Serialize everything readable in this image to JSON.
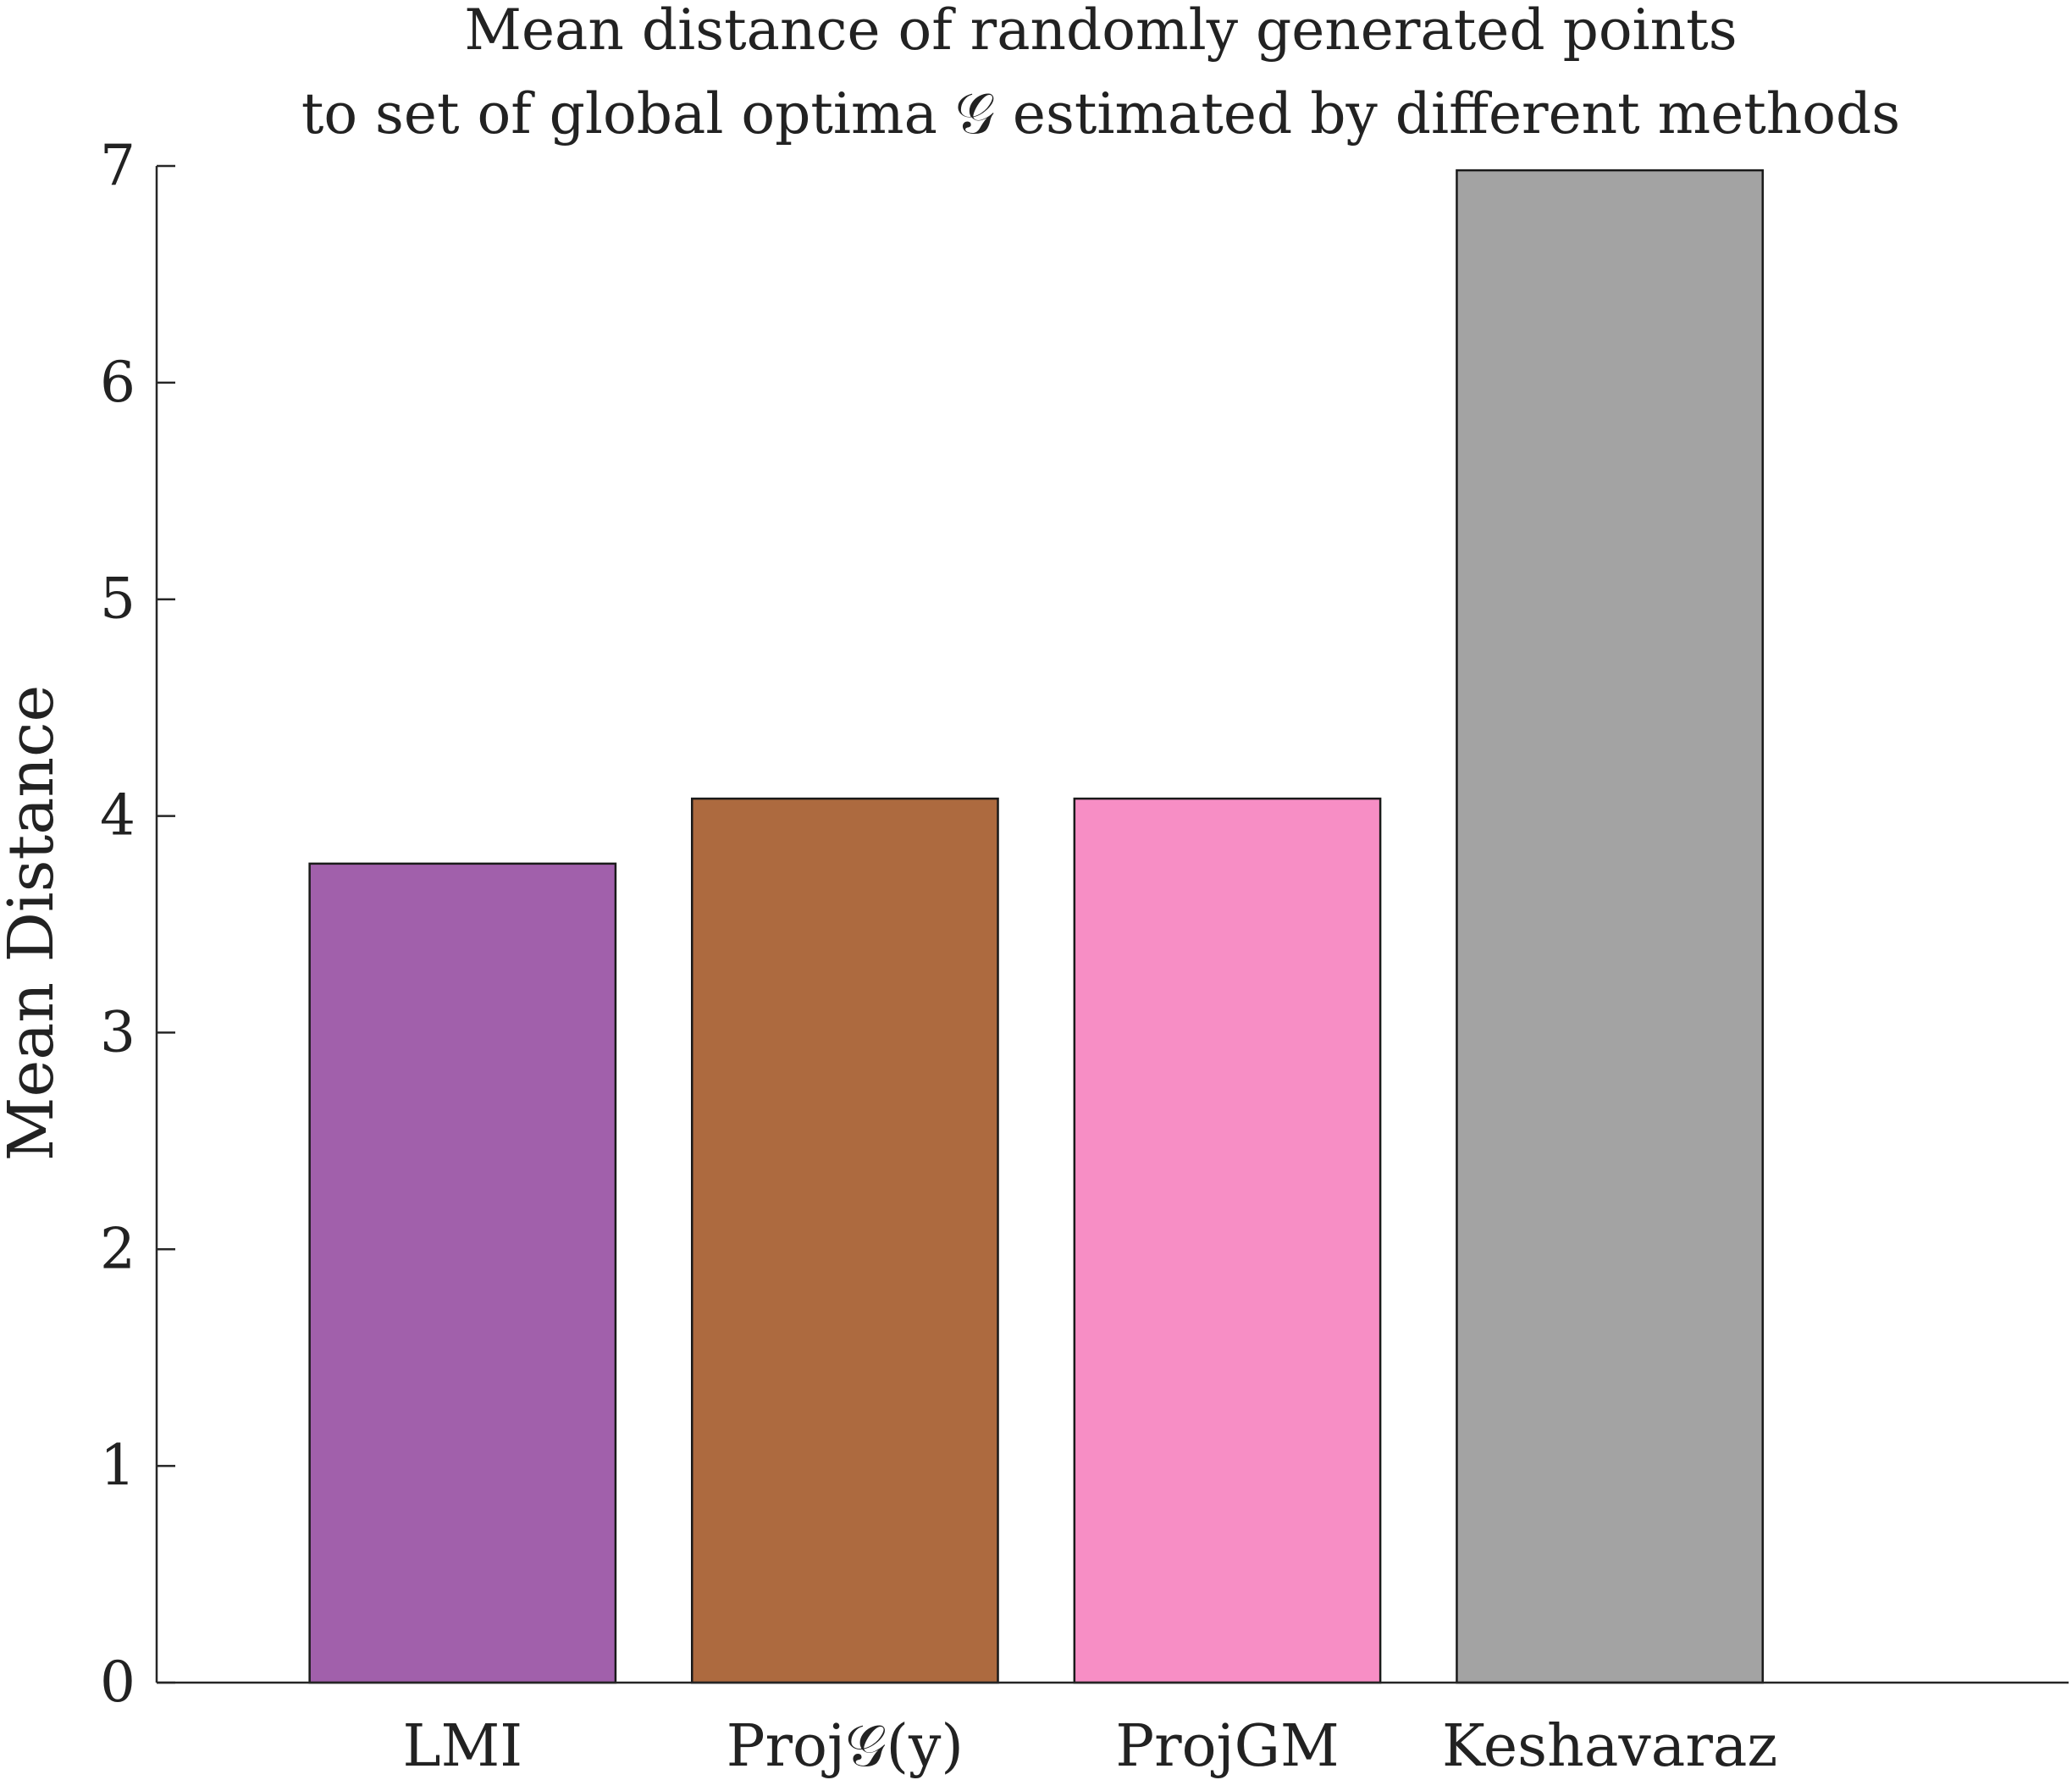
{
  "chart_data": {
    "type": "bar",
    "title_lines": [
      "Mean distance of randomly generated points",
      "to set of global optima 𝒢 estimated by different methods"
    ],
    "xlabel": "",
    "ylabel": "Mean Distance",
    "categories": [
      "LMI",
      "Proj𝒢(y)",
      "ProjGM",
      "Keshavaraz"
    ],
    "values": [
      3.78,
      4.08,
      4.08,
      6.98
    ],
    "colors": [
      "#a160ab",
      "#ad6a3f",
      "#f78ec5",
      "#a3a3a3"
    ],
    "ylim": [
      0,
      7
    ],
    "yticks": [
      0,
      1,
      2,
      3,
      4,
      5,
      6,
      7
    ],
    "ytick_labels": [
      "0",
      "1",
      "2",
      "3",
      "4",
      "5",
      "6",
      "7"
    ],
    "grid": false,
    "legend": "none"
  }
}
